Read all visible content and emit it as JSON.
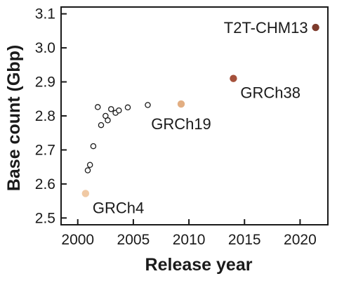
{
  "chart_data": {
    "type": "scatter",
    "title": "",
    "xlabel": "Release year",
    "ylabel": "Base count (Gbp)",
    "xlim": [
      1998.5,
      2022.5
    ],
    "ylim": [
      2.48,
      3.12
    ],
    "x_ticks": [
      2000,
      2005,
      2010,
      2015,
      2020
    ],
    "x_tick_labels": [
      "2000",
      "2005",
      "2010",
      "2015",
      "2020"
    ],
    "y_ticks": [
      2.5,
      2.6,
      2.7,
      2.8,
      2.9,
      3.0,
      3.1
    ],
    "y_tick_labels": [
      "2.5",
      "2.6",
      "2.7",
      "2.8",
      "2.9",
      "3.0",
      "3.1"
    ],
    "grid": false,
    "colors": {
      "open_marker": "#1a1a1a",
      "GRCh4": "#f0c9a4",
      "GRCh19": "#e2ae82",
      "GRCh38": "#a5513b",
      "T2T-CHM13": "#7d3b2c"
    },
    "series": [
      {
        "style": "open",
        "points": [
          {
            "x": 2000.9,
            "y": 2.64
          },
          {
            "x": 2001.1,
            "y": 2.656
          },
          {
            "x": 2001.4,
            "y": 2.711
          },
          {
            "x": 2001.8,
            "y": 2.826
          },
          {
            "x": 2002.1,
            "y": 2.773
          },
          {
            "x": 2002.5,
            "y": 2.8
          },
          {
            "x": 2002.7,
            "y": 2.787
          },
          {
            "x": 2003.0,
            "y": 2.82
          },
          {
            "x": 2003.4,
            "y": 2.809
          },
          {
            "x": 2003.7,
            "y": 2.816
          },
          {
            "x": 2004.5,
            "y": 2.825
          },
          {
            "x": 2006.3,
            "y": 2.832
          }
        ]
      },
      {
        "style": "filled",
        "points": [
          {
            "label": "GRCh4",
            "x": 2000.7,
            "y": 2.572,
            "color": "#f0c9a4",
            "label_pos": "right-below"
          },
          {
            "label": "GRCh19",
            "x": 2009.3,
            "y": 2.835,
            "color": "#e2ae82",
            "label_pos": "below"
          },
          {
            "label": "GRCh38",
            "x": 2014.0,
            "y": 2.91,
            "color": "#a5513b",
            "label_pos": "right-below"
          },
          {
            "label": "T2T-CHM13",
            "x": 2021.4,
            "y": 3.06,
            "color": "#7d3b2c",
            "label_pos": "left"
          }
        ]
      }
    ]
  }
}
